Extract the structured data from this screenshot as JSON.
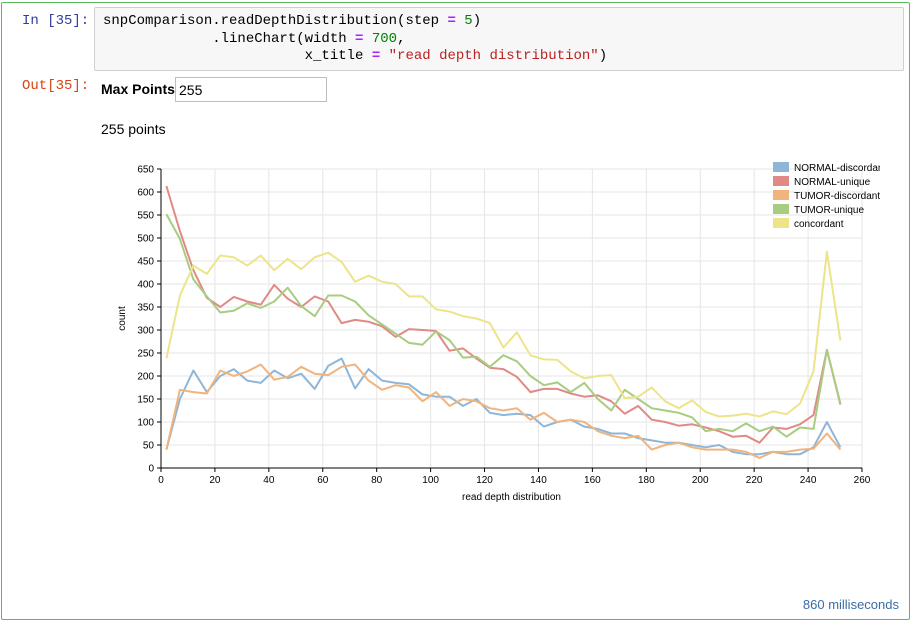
{
  "input": {
    "prompt": "In [35]:",
    "code_lines": [
      "snpComparison.readDepthDistribution(step = 5)",
      "             .lineChart(width = 700,",
      "                        x_title = \"read depth distribution\")"
    ]
  },
  "output": {
    "prompt": "Out[35]:",
    "max_points_label": "Max Points",
    "max_points_value": "255",
    "points_count": "255 points",
    "elapsed": "860 milliseconds"
  },
  "chart_data": {
    "type": "line",
    "xlabel": "read depth distribution",
    "ylabel": "count",
    "xlim": [
      0,
      260
    ],
    "ylim": [
      0,
      650
    ],
    "xticks": [
      0,
      20,
      40,
      60,
      80,
      100,
      120,
      140,
      160,
      180,
      200,
      220,
      240,
      260
    ],
    "yticks": [
      0,
      50,
      100,
      150,
      200,
      250,
      300,
      350,
      400,
      450,
      500,
      550,
      600,
      650
    ],
    "grid": true,
    "legend_position": "top-right",
    "x": [
      2,
      7,
      12,
      17,
      22,
      27,
      32,
      37,
      42,
      47,
      52,
      57,
      62,
      67,
      72,
      77,
      82,
      87,
      92,
      97,
      102,
      107,
      112,
      117,
      122,
      127,
      132,
      137,
      142,
      147,
      152,
      157,
      162,
      167,
      172,
      177,
      182,
      187,
      192,
      197,
      202,
      207,
      212,
      217,
      222,
      227,
      232,
      237,
      242,
      247,
      252
    ],
    "series": [
      {
        "name": "NORMAL-discordant",
        "color": "#8fb6d8",
        "values": [
          40,
          150,
          212,
          165,
          200,
          215,
          190,
          185,
          212,
          195,
          205,
          172,
          222,
          238,
          173,
          215,
          190,
          185,
          182,
          160,
          155,
          155,
          135,
          150,
          120,
          115,
          118,
          115,
          90,
          100,
          105,
          90,
          85,
          75,
          75,
          65,
          60,
          55,
          55,
          50,
          45,
          50,
          35,
          30,
          30,
          35,
          30,
          30,
          45,
          100,
          45
        ]
      },
      {
        "name": "NORMAL-unique",
        "color": "#e08a86",
        "values": [
          613,
          515,
          430,
          370,
          350,
          372,
          362,
          355,
          398,
          368,
          350,
          373,
          362,
          315,
          322,
          318,
          308,
          285,
          302,
          300,
          298,
          255,
          260,
          238,
          218,
          215,
          198,
          165,
          172,
          172,
          162,
          155,
          158,
          145,
          118,
          135,
          105,
          100,
          92,
          95,
          88,
          80,
          68,
          70,
          55,
          88,
          85,
          95,
          115,
          257,
          138
        ]
      },
      {
        "name": "TUMOR-discordant",
        "color": "#f0b47e",
        "values": [
          40,
          170,
          165,
          162,
          212,
          200,
          210,
          225,
          192,
          198,
          220,
          205,
          202,
          220,
          225,
          190,
          170,
          180,
          175,
          145,
          165,
          135,
          150,
          145,
          130,
          125,
          130,
          105,
          120,
          100,
          105,
          100,
          80,
          70,
          65,
          70,
          40,
          50,
          55,
          45,
          40,
          40,
          40,
          35,
          22,
          35,
          35,
          40,
          42,
          75,
          40
        ]
      },
      {
        "name": "TUMOR-unique",
        "color": "#a8cc80",
        "values": [
          552,
          498,
          410,
          373,
          338,
          342,
          358,
          348,
          362,
          392,
          352,
          330,
          375,
          375,
          362,
          332,
          312,
          292,
          272,
          268,
          297,
          278,
          240,
          242,
          220,
          245,
          232,
          200,
          180,
          186,
          165,
          185,
          150,
          125,
          170,
          150,
          130,
          125,
          120,
          110,
          80,
          85,
          80,
          97,
          80,
          90,
          68,
          88,
          85,
          257,
          140
        ]
      },
      {
        "name": "concordant",
        "color": "#ede48a",
        "values": [
          238,
          375,
          440,
          422,
          462,
          458,
          440,
          462,
          430,
          455,
          432,
          458,
          468,
          448,
          405,
          418,
          405,
          400,
          373,
          373,
          345,
          340,
          330,
          325,
          315,
          262,
          295,
          245,
          236,
          235,
          210,
          195,
          200,
          202,
          152,
          155,
          175,
          145,
          130,
          147,
          122,
          112,
          114,
          118,
          112,
          123,
          117,
          140,
          210,
          470,
          277
        ]
      }
    ]
  }
}
